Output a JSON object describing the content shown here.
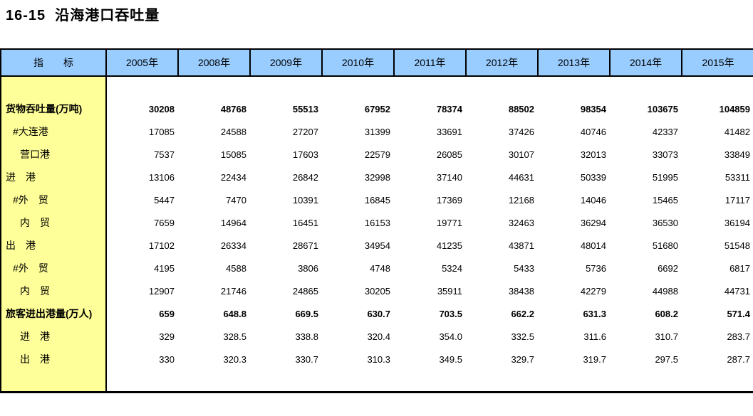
{
  "title": "16-15  沿海港口吞吐量",
  "colors": {
    "header_bg": "#99CCFF",
    "stub_bg": "#FFFF99",
    "border": "#000000",
    "text": "#000000"
  },
  "chart_data": {
    "type": "table",
    "title": "16-15 沿海港口吞吐量",
    "indicator_header": "指　　标",
    "year_columns": [
      "2005年",
      "2008年",
      "2009年",
      "2010年",
      "2011年",
      "2012年",
      "2013年",
      "2014年",
      "2015年"
    ],
    "rows": [
      {
        "label": "货物吞吐量(万吨)",
        "indent": 0,
        "bold": true,
        "values": [
          "30208",
          "48768",
          "55513",
          "67952",
          "78374",
          "88502",
          "98354",
          "103675",
          "104859"
        ]
      },
      {
        "label": "#大连港",
        "indent": 1,
        "bold": false,
        "values": [
          "17085",
          "24588",
          "27207",
          "31399",
          "33691",
          "37426",
          "40746",
          "42337",
          "41482"
        ]
      },
      {
        "label": "营口港",
        "indent": 2,
        "bold": false,
        "values": [
          "7537",
          "15085",
          "17603",
          "22579",
          "26085",
          "30107",
          "32013",
          "33073",
          "33849"
        ]
      },
      {
        "label": "进　港",
        "indent": 0,
        "bold": false,
        "values": [
          "13106",
          "22434",
          "26842",
          "32998",
          "37140",
          "44631",
          "50339",
          "51995",
          "53311"
        ]
      },
      {
        "label": "#外　贸",
        "indent": 1,
        "bold": false,
        "values": [
          "5447",
          "7470",
          "10391",
          "16845",
          "17369",
          "12168",
          "14046",
          "15465",
          "17117"
        ]
      },
      {
        "label": "内　贸",
        "indent": 2,
        "bold": false,
        "values": [
          "7659",
          "14964",
          "16451",
          "16153",
          "19771",
          "32463",
          "36294",
          "36530",
          "36194"
        ]
      },
      {
        "label": "出　港",
        "indent": 0,
        "bold": false,
        "values": [
          "17102",
          "26334",
          "28671",
          "34954",
          "41235",
          "43871",
          "48014",
          "51680",
          "51548"
        ]
      },
      {
        "label": "#外　贸",
        "indent": 1,
        "bold": false,
        "values": [
          "4195",
          "4588",
          "3806",
          "4748",
          "5324",
          "5433",
          "5736",
          "6692",
          "6817"
        ]
      },
      {
        "label": "内　贸",
        "indent": 2,
        "bold": false,
        "values": [
          "12907",
          "21746",
          "24865",
          "30205",
          "35911",
          "38438",
          "42279",
          "44988",
          "44731"
        ]
      },
      {
        "label": "旅客进出港量(万人)",
        "indent": 0,
        "bold": true,
        "values": [
          "659",
          "648.8",
          "669.5",
          "630.7",
          "703.5",
          "662.2",
          "631.3",
          "608.2",
          "571.4"
        ]
      },
      {
        "label": "进　港",
        "indent": 2,
        "bold": false,
        "values": [
          "329",
          "328.5",
          "338.8",
          "320.4",
          "354.0",
          "332.5",
          "311.6",
          "310.7",
          "283.7"
        ]
      },
      {
        "label": "出　港",
        "indent": 2,
        "bold": false,
        "values": [
          "330",
          "320.3",
          "330.7",
          "310.3",
          "349.5",
          "329.7",
          "319.7",
          "297.5",
          "287.7"
        ]
      }
    ]
  }
}
